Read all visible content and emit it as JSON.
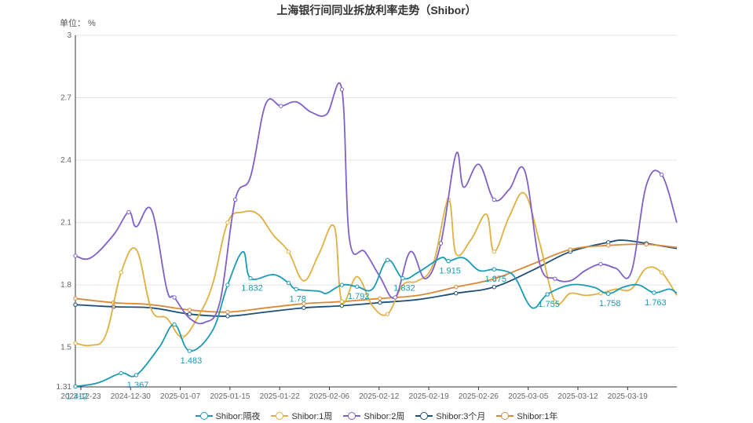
{
  "chart_data": {
    "type": "line",
    "title": "上海银行间同业拆放利率走势（Shibor）",
    "unit_label": "单位： %",
    "ylim": [
      1.31,
      3
    ],
    "y_ticks": [
      "1.31",
      "1.5",
      "1.8",
      "2.1",
      "2.4",
      "2.7",
      "3"
    ],
    "x_tick_labels": [
      "2024-12-23",
      "2024-12-30",
      "2025-01-07",
      "2025-01-15",
      "2025-01-22",
      "2025-02-06",
      "2025-02-12",
      "2025-02-19",
      "2025-02-26",
      "2025-03-05",
      "2025-03-12",
      "2025-03-19"
    ],
    "grid": "horizontal",
    "legend_position": "bottom",
    "series": [
      {
        "name": "Shibor:隔夜",
        "color": "#1a9ab5",
        "values": [
          [
            0,
            1.312
          ],
          [
            3,
            1.33
          ],
          [
            6,
            1.376
          ],
          [
            8,
            1.367
          ],
          [
            11,
            1.5
          ],
          [
            13,
            1.61
          ],
          [
            15,
            1.483
          ],
          [
            18,
            1.58
          ],
          [
            20,
            1.8
          ],
          [
            22,
            1.96
          ],
          [
            23,
            1.832
          ],
          [
            26,
            1.85
          ],
          [
            28,
            1.81
          ],
          [
            29,
            1.78
          ],
          [
            32,
            1.77
          ],
          [
            33,
            1.76
          ],
          [
            35,
            1.8
          ],
          [
            37,
            1.792
          ],
          [
            39,
            1.78
          ],
          [
            41,
            1.92
          ],
          [
            43,
            1.832
          ],
          [
            45,
            1.86
          ],
          [
            48,
            1.93
          ],
          [
            49,
            1.915
          ],
          [
            51,
            1.93
          ],
          [
            53,
            1.87
          ],
          [
            55,
            1.875
          ],
          [
            57,
            1.86
          ],
          [
            58,
            1.82
          ],
          [
            60,
            1.69
          ],
          [
            62,
            1.755
          ],
          [
            65,
            1.8
          ],
          [
            68,
            1.79
          ],
          [
            70,
            1.758
          ],
          [
            72,
            1.79
          ],
          [
            74,
            1.8
          ],
          [
            76,
            1.763
          ],
          [
            78,
            1.78
          ],
          [
            79,
            1.76
          ]
        ]
      },
      {
        "name": "Shibor:1周",
        "color": "#e0b040",
        "values": [
          [
            0,
            1.52
          ],
          [
            2,
            1.51
          ],
          [
            4,
            1.56
          ],
          [
            6,
            1.86
          ],
          [
            8,
            1.97
          ],
          [
            10,
            1.68
          ],
          [
            12,
            1.64
          ],
          [
            14,
            1.55
          ],
          [
            16,
            1.64
          ],
          [
            18,
            1.8
          ],
          [
            20,
            2.1
          ],
          [
            22,
            2.15
          ],
          [
            24,
            2.14
          ],
          [
            26,
            2.04
          ],
          [
            28,
            1.96
          ],
          [
            30,
            1.82
          ],
          [
            32,
            1.95
          ],
          [
            34,
            2.08
          ],
          [
            35,
            1.72
          ],
          [
            37,
            1.84
          ],
          [
            39,
            1.7
          ],
          [
            41,
            1.66
          ],
          [
            43,
            1.8
          ],
          [
            45,
            1.82
          ],
          [
            47,
            1.9
          ],
          [
            49,
            2.21
          ],
          [
            50,
            1.95
          ],
          [
            52,
            2.02
          ],
          [
            54,
            2.14
          ],
          [
            55,
            1.96
          ],
          [
            57,
            2.13
          ],
          [
            59,
            2.24
          ],
          [
            61,
            2.0
          ],
          [
            63,
            1.72
          ],
          [
            65,
            1.76
          ],
          [
            67,
            1.75
          ],
          [
            69,
            1.76
          ],
          [
            71,
            1.78
          ],
          [
            73,
            1.78
          ],
          [
            75,
            1.88
          ],
          [
            77,
            1.86
          ],
          [
            79,
            1.75
          ]
        ]
      },
      {
        "name": "Shibor:2周",
        "color": "#8060c8",
        "values": [
          [
            0,
            1.94
          ],
          [
            2,
            1.93
          ],
          [
            5,
            2.04
          ],
          [
            7,
            2.15
          ],
          [
            8,
            2.08
          ],
          [
            10,
            2.16
          ],
          [
            12,
            1.78
          ],
          [
            13,
            1.74
          ],
          [
            15,
            1.64
          ],
          [
            17,
            1.62
          ],
          [
            19,
            1.72
          ],
          [
            21,
            2.21
          ],
          [
            23,
            2.32
          ],
          [
            25,
            2.67
          ],
          [
            27,
            2.66
          ],
          [
            29,
            2.68
          ],
          [
            31,
            2.63
          ],
          [
            33,
            2.62
          ],
          [
            35,
            2.74
          ],
          [
            36,
            2.02
          ],
          [
            38,
            1.96
          ],
          [
            40,
            1.84
          ],
          [
            42,
            1.74
          ],
          [
            44,
            1.96
          ],
          [
            46,
            1.83
          ],
          [
            48,
            2.0
          ],
          [
            50,
            2.43
          ],
          [
            51,
            2.27
          ],
          [
            53,
            2.38
          ],
          [
            55,
            2.21
          ],
          [
            57,
            2.26
          ],
          [
            59,
            2.35
          ],
          [
            61,
            1.9
          ],
          [
            63,
            1.83
          ],
          [
            65,
            1.82
          ],
          [
            67,
            1.87
          ],
          [
            69,
            1.9
          ],
          [
            71,
            1.88
          ],
          [
            73,
            1.86
          ],
          [
            75,
            2.28
          ],
          [
            77,
            2.33
          ],
          [
            79,
            2.1
          ]
        ]
      },
      {
        "name": "Shibor:3个月",
        "color": "#1e4f78",
        "values": [
          [
            0,
            1.705
          ],
          [
            5,
            1.695
          ],
          [
            10,
            1.69
          ],
          [
            15,
            1.66
          ],
          [
            20,
            1.65
          ],
          [
            25,
            1.67
          ],
          [
            30,
            1.69
          ],
          [
            35,
            1.7
          ],
          [
            40,
            1.715
          ],
          [
            45,
            1.73
          ],
          [
            50,
            1.76
          ],
          [
            55,
            1.79
          ],
          [
            60,
            1.87
          ],
          [
            65,
            1.96
          ],
          [
            70,
            2.005
          ],
          [
            72,
            2.015
          ],
          [
            75,
            2.0
          ],
          [
            79,
            1.975
          ]
        ]
      },
      {
        "name": "Shibor:1年",
        "color": "#d88a3a",
        "values": [
          [
            0,
            1.735
          ],
          [
            5,
            1.715
          ],
          [
            10,
            1.705
          ],
          [
            15,
            1.68
          ],
          [
            20,
            1.67
          ],
          [
            25,
            1.69
          ],
          [
            30,
            1.71
          ],
          [
            35,
            1.72
          ],
          [
            40,
            1.735
          ],
          [
            45,
            1.75
          ],
          [
            50,
            1.79
          ],
          [
            55,
            1.83
          ],
          [
            60,
            1.9
          ],
          [
            65,
            1.97
          ],
          [
            70,
            1.99
          ],
          [
            75,
            1.995
          ],
          [
            79,
            1.98
          ]
        ]
      }
    ],
    "data_labels": [
      {
        "x": 0,
        "y": 1.312,
        "text": "1.312"
      },
      {
        "x": 8,
        "y": 1.367,
        "text": "1.367"
      },
      {
        "x": 15,
        "y": 1.483,
        "text": "1.483"
      },
      {
        "x": 23,
        "y": 1.832,
        "text": "1.832"
      },
      {
        "x": 29,
        "y": 1.78,
        "text": "1.78"
      },
      {
        "x": 37,
        "y": 1.792,
        "text": "1.792"
      },
      {
        "x": 43,
        "y": 1.832,
        "text": "1.832"
      },
      {
        "x": 49,
        "y": 1.915,
        "text": "1.915"
      },
      {
        "x": 55,
        "y": 1.875,
        "text": "1.875"
      },
      {
        "x": 62,
        "y": 1.755,
        "text": "1.755"
      },
      {
        "x": 70,
        "y": 1.758,
        "text": "1.758"
      },
      {
        "x": 76,
        "y": 1.763,
        "text": "1.763"
      }
    ]
  }
}
